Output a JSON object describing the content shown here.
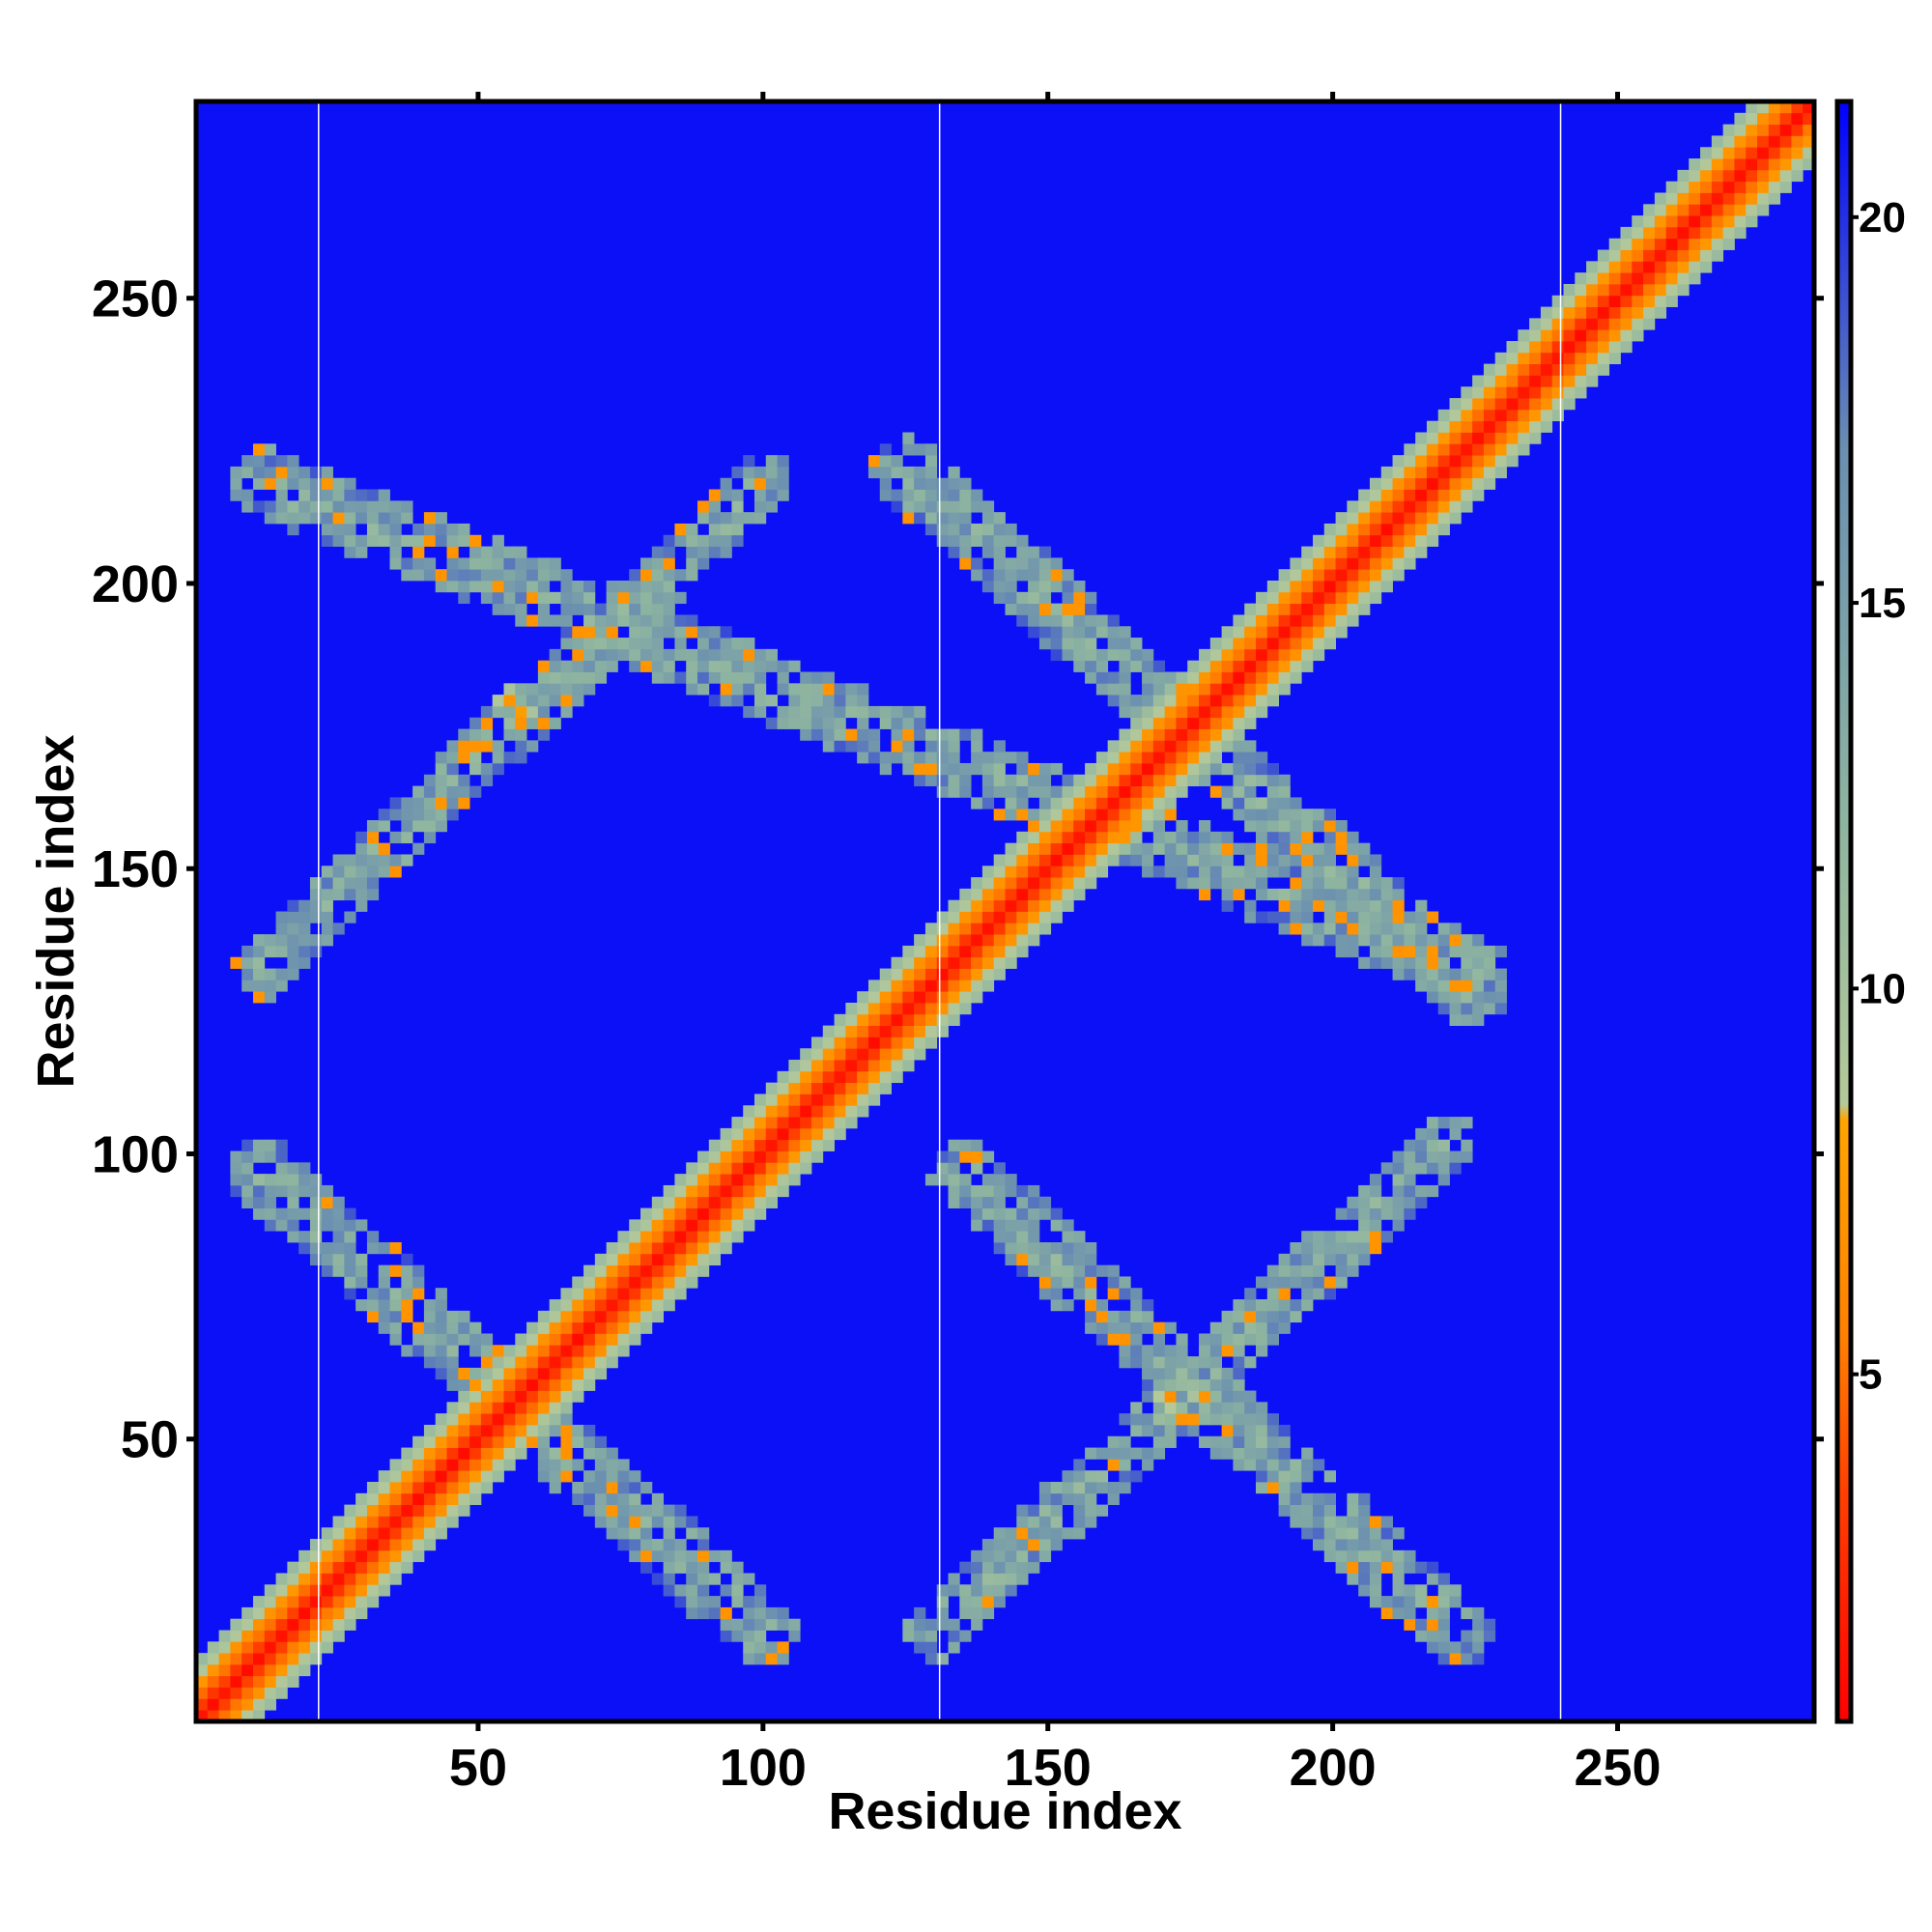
{
  "chart_data": {
    "type": "heatmap",
    "title": "",
    "xlabel": "Residue index",
    "ylabel": "Residue index",
    "xlim": [
      1,
      284
    ],
    "ylim": [
      1,
      284
    ],
    "x_ticks": [
      50,
      100,
      150,
      200,
      250
    ],
    "y_ticks": [
      50,
      100,
      150,
      200,
      250
    ],
    "grid": false,
    "background_value": 21,
    "chain_boundaries": [
      22,
      131,
      240
    ],
    "colorbar": {
      "position": "right",
      "ticks": [
        5,
        10,
        15,
        20
      ],
      "range": [
        0.5,
        21.5
      ],
      "colors": [
        {
          "value": 0.5,
          "color": "#ff0000"
        },
        {
          "value": 3.5,
          "color": "#ff4000"
        },
        {
          "value": 5.5,
          "color": "#ff8000"
        },
        {
          "value": 8.3,
          "color": "#ffa500"
        },
        {
          "value": 8.5,
          "color": "#b5c99a"
        },
        {
          "value": 12.0,
          "color": "#8fb5a0"
        },
        {
          "value": 17.0,
          "color": "#6a8fb0"
        },
        {
          "value": 21.5,
          "color": "#0000ff"
        }
      ]
    },
    "bands": [
      {
        "kind": "diagonal",
        "from": [
          1,
          1
        ],
        "to": [
          284,
          284
        ],
        "halfwidth": 8
      },
      {
        "kind": "antidiagonal",
        "from": [
          12,
          218
        ],
        "to": [
          225,
          132
        ],
        "halfwidth": 6
      },
      {
        "kind": "antidiagonal",
        "from": [
          125,
          220
        ],
        "to": [
          225,
          128
        ],
        "halfwidth": 6
      },
      {
        "kind": "antidiagonal",
        "from": [
          12,
          97
        ],
        "to": [
          100,
          16
        ],
        "halfwidth": 6
      },
      {
        "kind": "antidiagonal",
        "from": [
          135,
          97
        ],
        "to": [
          222,
          16
        ],
        "halfwidth": 6
      },
      {
        "kind": "diagonal",
        "from": [
          12,
          132
        ],
        "to": [
          100,
          218
        ],
        "halfwidth": 5
      },
      {
        "kind": "diagonal",
        "from": [
          130,
          16
        ],
        "to": [
          220,
          102
        ],
        "halfwidth": 5
      }
    ],
    "crossings": [
      [
        58,
        58
      ],
      [
        56,
        178
      ],
      [
        112,
        112
      ],
      [
        172,
        172
      ],
      [
        172,
        58
      ]
    ]
  }
}
